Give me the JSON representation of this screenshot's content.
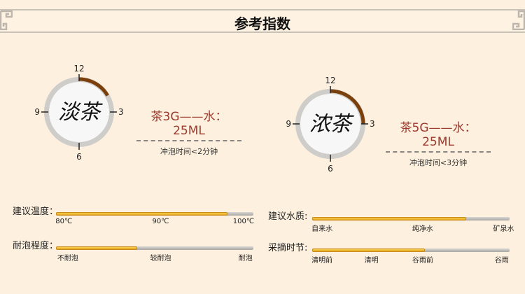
{
  "header": {
    "title": "参考指数"
  },
  "clocks": [
    {
      "name": "淡茶",
      "labels": [
        "12",
        "3",
        "6",
        "9"
      ],
      "minutes": 2,
      "ratio": "茶3G——水：25ML",
      "brew_time": "冲泡时间<2分钟"
    },
    {
      "name": "浓茶",
      "labels": [
        "12",
        "3",
        "6",
        "9"
      ],
      "minutes": 3,
      "ratio": "茶5G——水：25ML",
      "brew_time": "冲泡时间<3分钟"
    }
  ],
  "colors": {
    "arc": "#7a3f0a",
    "bar_fill": "#f0be30",
    "ratio_text": "#9b3a2e",
    "background": "#fdf0df"
  },
  "indicators": [
    {
      "label": "建议温度：",
      "fill_percent": 87,
      "ticks": [
        "80℃",
        "90℃",
        "100℃"
      ]
    },
    {
      "label": "耐泡程度：",
      "fill_percent": 41,
      "ticks": [
        "不耐泡",
        "较耐泡",
        "耐泡"
      ]
    },
    {
      "label": "建议水质:",
      "fill_percent": 78,
      "ticks": [
        "自来水",
        "纯净水",
        "矿泉水"
      ]
    },
    {
      "label": "采摘时节:",
      "fill_percent": 57,
      "ticks": [
        "清明前",
        "清明",
        "谷雨前",
        "谷雨"
      ]
    }
  ]
}
